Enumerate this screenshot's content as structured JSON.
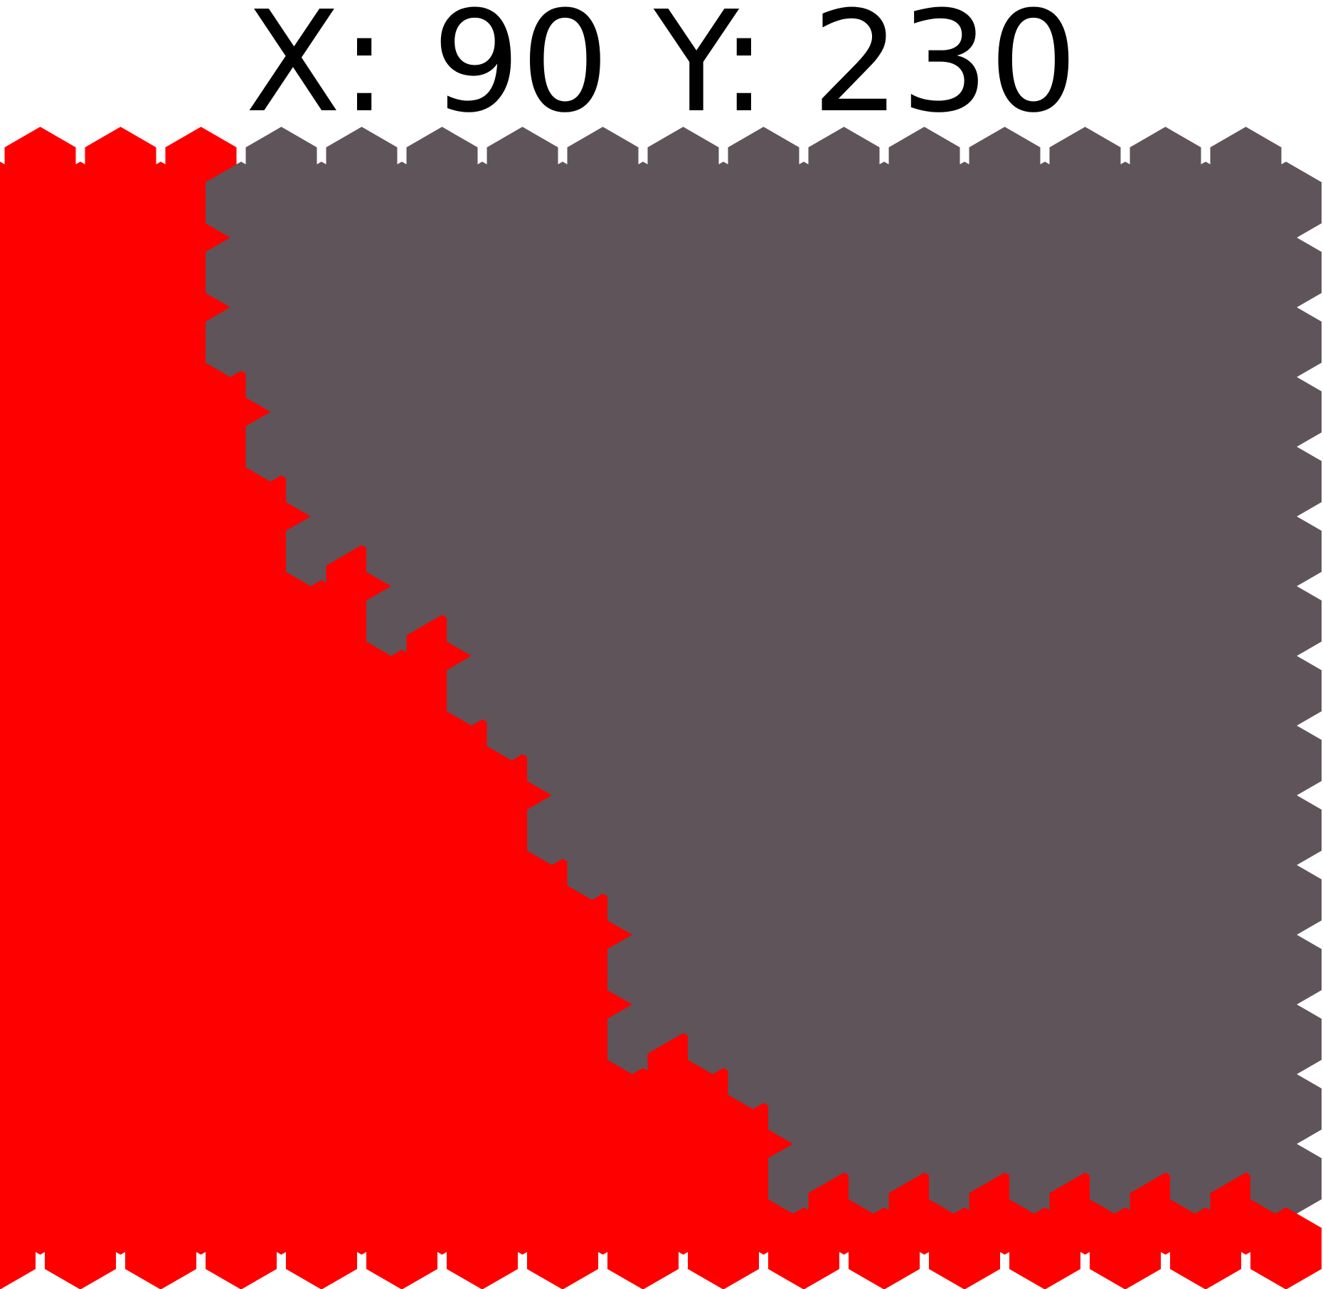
{
  "header": {
    "x_label": "X:",
    "x_value": "90",
    "y_label": "Y:",
    "y_value": "230"
  },
  "grid": {
    "columns": 33,
    "rows": 16,
    "boundary_row_per_column": [
      0,
      0,
      0,
      0,
      0,
      0,
      3,
      5,
      6,
      6,
      7,
      7,
      8,
      9,
      10,
      11,
      13,
      13,
      13,
      14,
      15,
      15,
      15,
      15,
      15,
      15,
      15,
      15,
      15,
      15,
      15,
      15,
      15
    ],
    "colors": {
      "territory": "#ff0000",
      "unclaimed": "#5f5459"
    }
  }
}
